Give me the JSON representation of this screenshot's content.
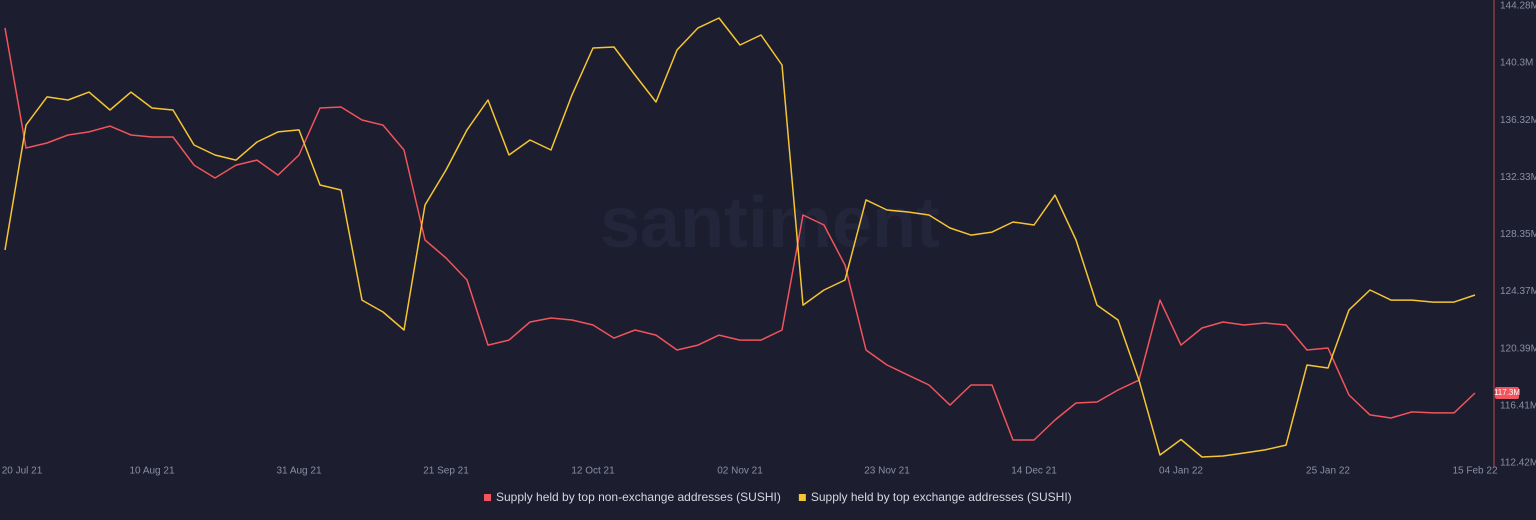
{
  "chart_data": {
    "type": "line",
    "watermark": "santiment",
    "x": [
      "2021-07-20",
      "2021-07-23",
      "2021-07-26",
      "2021-07-29",
      "2021-08-01",
      "2021-08-04",
      "2021-08-07",
      "2021-08-10",
      "2021-08-13",
      "2021-08-16",
      "2021-08-19",
      "2021-08-22",
      "2021-08-25",
      "2021-08-28",
      "2021-08-31",
      "2021-09-03",
      "2021-09-06",
      "2021-09-09",
      "2021-09-12",
      "2021-09-15",
      "2021-09-18",
      "2021-09-21",
      "2021-09-24",
      "2021-09-27",
      "2021-09-30",
      "2021-10-03",
      "2021-10-06",
      "2021-10-09",
      "2021-10-12",
      "2021-10-15",
      "2021-10-18",
      "2021-10-21",
      "2021-10-24",
      "2021-10-27",
      "2021-10-30",
      "2021-11-02",
      "2021-11-05",
      "2021-11-08",
      "2021-11-11",
      "2021-11-14",
      "2021-11-17",
      "2021-11-20",
      "2021-11-23",
      "2021-11-26",
      "2021-11-29",
      "2021-12-02",
      "2021-12-05",
      "2021-12-08",
      "2021-12-11",
      "2021-12-14",
      "2021-12-17",
      "2021-12-20",
      "2021-12-23",
      "2021-12-26",
      "2021-12-29",
      "2022-01-01",
      "2022-01-04",
      "2022-01-07",
      "2022-01-10",
      "2022-01-13",
      "2022-01-16",
      "2022-01-19",
      "2022-01-22",
      "2022-01-25",
      "2022-01-28",
      "2022-01-31",
      "2022-02-03",
      "2022-02-06",
      "2022-02-09",
      "2022-02-12",
      "2022-02-15"
    ],
    "xlim": [
      "2021-07-20",
      "2022-02-15"
    ],
    "xticks": [
      {
        "value": "2021-07-20",
        "label": "20 Jul 21"
      },
      {
        "value": "2021-08-10",
        "label": "10 Aug 21"
      },
      {
        "value": "2021-08-31",
        "label": "31 Aug 21"
      },
      {
        "value": "2021-09-21",
        "label": "21 Sep 21"
      },
      {
        "value": "2021-10-12",
        "label": "12 Oct 21"
      },
      {
        "value": "2021-11-02",
        "label": "02 Nov 21"
      },
      {
        "value": "2021-11-23",
        "label": "23 Nov 21"
      },
      {
        "value": "2021-12-14",
        "label": "14 Dec 21"
      },
      {
        "value": "2022-01-04",
        "label": "04 Jan 22"
      },
      {
        "value": "2022-01-25",
        "label": "25 Jan 22"
      },
      {
        "value": "2022-02-15",
        "label": "15 Feb 22"
      }
    ],
    "ylim": [
      112.42,
      144.28
    ],
    "yticks": [
      {
        "value": 144.28,
        "label": "144.28M"
      },
      {
        "value": 140.3,
        "label": "140.3M"
      },
      {
        "value": 136.32,
        "label": "136.32M"
      },
      {
        "value": 132.33,
        "label": "132.33M"
      },
      {
        "value": 128.35,
        "label": "128.35M"
      },
      {
        "value": 124.37,
        "label": "124.37M"
      },
      {
        "value": 120.39,
        "label": "120.39M"
      },
      {
        "value": 116.41,
        "label": "116.41M"
      },
      {
        "value": 112.42,
        "label": "112.42M"
      }
    ],
    "grid": false,
    "current_value": {
      "value": 117.3,
      "label": "117.3M"
    },
    "series": [
      {
        "name": "Supply held by top non-exchange addresses (SUSHI)",
        "color": "#f0545c",
        "values": [
          142.75,
          134.38,
          134.73,
          135.29,
          135.5,
          135.91,
          135.29,
          135.15,
          135.15,
          133.19,
          132.29,
          133.19,
          133.54,
          132.49,
          133.89,
          137.17,
          137.24,
          136.33,
          135.98,
          134.24,
          127.97,
          126.71,
          125.18,
          120.64,
          120.99,
          122.25,
          122.53,
          122.39,
          122.04,
          121.13,
          121.69,
          121.34,
          120.3,
          120.64,
          121.34,
          120.99,
          120.99,
          121.69,
          129.71,
          129.01,
          126.22,
          120.3,
          119.25,
          118.55,
          117.86,
          116.46,
          117.86,
          117.86,
          114.02,
          114.02,
          115.42,
          116.6,
          116.67,
          117.51,
          118.2,
          123.78,
          120.64,
          121.83,
          122.25,
          122.04,
          122.18,
          122.04,
          120.3,
          120.44,
          117.16,
          115.77,
          115.56,
          115.98,
          115.91,
          115.91,
          117.3
        ]
      },
      {
        "name": "Supply held by top exchange addresses (SUSHI)",
        "color": "#f5c533",
        "values": [
          127.27,
          135.98,
          137.94,
          137.73,
          138.28,
          137.03,
          138.28,
          137.17,
          137.03,
          134.59,
          133.89,
          133.54,
          134.8,
          135.5,
          135.64,
          131.8,
          131.45,
          123.78,
          122.95,
          121.69,
          130.41,
          132.85,
          135.64,
          137.73,
          133.89,
          134.94,
          134.24,
          138.08,
          141.35,
          141.42,
          139.47,
          137.59,
          141.21,
          142.75,
          143.44,
          141.56,
          142.26,
          140.17,
          123.43,
          124.48,
          125.18,
          130.76,
          130.06,
          129.92,
          129.71,
          128.8,
          128.31,
          128.52,
          129.22,
          129.01,
          131.1,
          127.97,
          123.43,
          122.39,
          118.2,
          112.98,
          114.06,
          112.84,
          112.91,
          113.12,
          113.33,
          113.67,
          119.25,
          119.04,
          123.09,
          124.48,
          123.78,
          123.78,
          123.64,
          123.64,
          124.13
        ]
      }
    ]
  }
}
